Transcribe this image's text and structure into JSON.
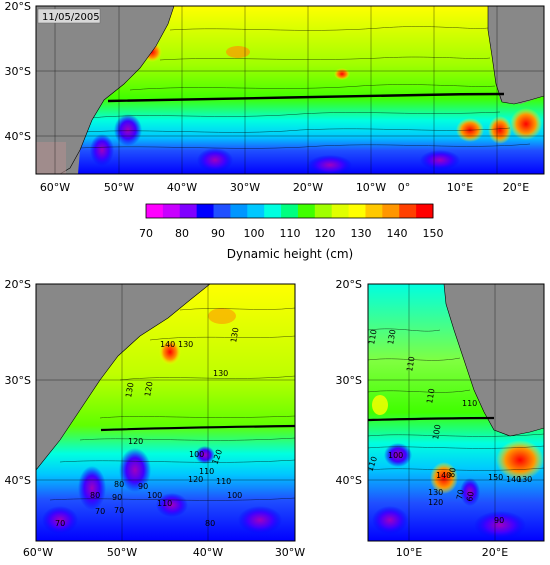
{
  "date_label": "11/05/2005",
  "colorbar": {
    "title": "Dynamic height (cm)",
    "ticks": [
      "70",
      "80",
      "90",
      "100",
      "110",
      "120",
      "130",
      "140",
      "150"
    ],
    "colors": [
      "#ff00ff",
      "#c800ff",
      "#8000ff",
      "#0000ff",
      "#2050ff",
      "#0096ff",
      "#00c8ff",
      "#00ffe0",
      "#00ff80",
      "#40ff00",
      "#a0ff00",
      "#e0ff00",
      "#ffff00",
      "#ffc800",
      "#ff9600",
      "#ff4000",
      "#ff0000"
    ]
  },
  "top_map": {
    "lat_ticks": [
      "20°S",
      "30°S",
      "40°S"
    ],
    "lon_ticks": [
      "60°W",
      "50°W",
      "40°W",
      "30°W",
      "20°W",
      "10°W",
      "0°",
      "10°E",
      "20°E"
    ]
  },
  "bottom_left_map": {
    "lat_ticks": [
      "20°S",
      "30°S",
      "40°S"
    ],
    "lon_ticks": [
      "60°W",
      "50°W",
      "40°W",
      "30°W"
    ],
    "contour_labels": [
      "140",
      "130",
      "130",
      "130",
      "130",
      "120",
      "120",
      "100",
      "110",
      "120",
      "120",
      "110",
      "100",
      "80",
      "70",
      "80",
      "90",
      "70",
      "90",
      "100",
      "110",
      "70",
      "80"
    ]
  },
  "bottom_right_map": {
    "lat_ticks": [
      "20°S",
      "30°S",
      "40°S"
    ],
    "lon_ticks": [
      "10°E",
      "20°E"
    ],
    "contour_labels": [
      "110",
      "130",
      "110",
      "110",
      "110",
      "100",
      "100",
      "110",
      "140",
      "130",
      "120",
      "80",
      "70",
      "60",
      "150",
      "140",
      "130",
      "90"
    ]
  }
}
